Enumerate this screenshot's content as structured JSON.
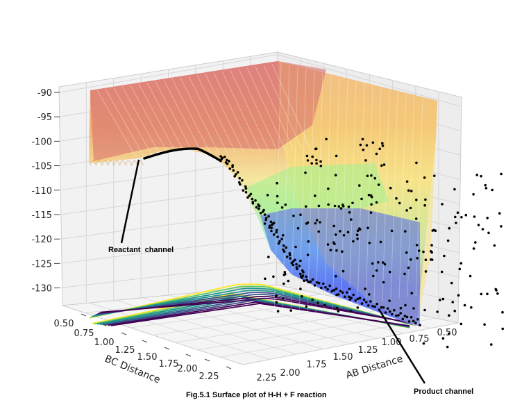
{
  "chart_data": {
    "type": "surface",
    "caption": "Fig.5.1 Surface plot of H-H + F reaction",
    "xlabel": "BC Distance",
    "ylabel": "AB Distance",
    "x_ticks": [
      "0.50",
      "0.75",
      "1.00",
      "1.25",
      "1.50",
      "1.75",
      "2.00",
      "2.25"
    ],
    "y_ticks": [
      "2.25",
      "2.00",
      "1.75",
      "1.50",
      "1.25",
      "1.00",
      "0.75",
      "0.50"
    ],
    "z_ticks": [
      "-90",
      "-95",
      "-100",
      "-105",
      "-110",
      "-115",
      "-120",
      "-125",
      "-130"
    ],
    "zlim": [
      -132,
      -90
    ],
    "annotations": [
      {
        "text": "Reactant  channel",
        "target": "reactant-channel"
      },
      {
        "text": "Product channel",
        "target": "product-channel"
      }
    ],
    "colormap": [
      "#440154",
      "#3b528b",
      "#21918c",
      "#5ec962",
      "#fde725"
    ],
    "band_colors": [
      "#d36b6b",
      "#f2a35e",
      "#f8d27a",
      "#c8ec8a",
      "#8ef0d8",
      "#8fc0f2",
      "#5e7ef8",
      "#8a8cf2"
    ],
    "trajectory_color": "#000000"
  }
}
